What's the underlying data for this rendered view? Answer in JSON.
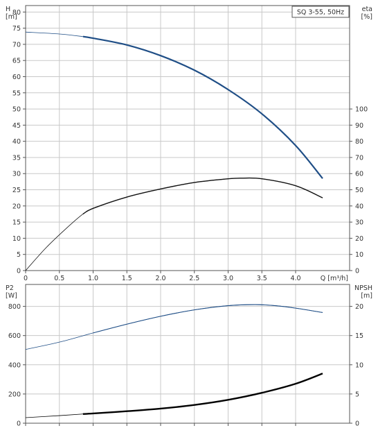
{
  "chart_data": [
    {
      "type": "line",
      "panel": "top",
      "title": "SQ 3-55, 50Hz",
      "x_axis": {
        "label": "Q [m³/h]",
        "ticks": [
          "0",
          "0.5",
          "1.0",
          "1.5",
          "2.0",
          "2.5",
          "3.0",
          "3.5",
          "4.0"
        ],
        "range": [
          0,
          4.8
        ]
      },
      "y_left": {
        "label": "H",
        "unit": "[m]",
        "ticks": [
          "0",
          "5",
          "10",
          "15",
          "20",
          "25",
          "30",
          "35",
          "40",
          "45",
          "50",
          "55",
          "60",
          "65",
          "70",
          "75",
          "80"
        ],
        "range": [
          0,
          82
        ]
      },
      "y_right": {
        "label": "eta",
        "unit": "[%]",
        "ticks": [
          "0",
          "10",
          "20",
          "30",
          "40",
          "50",
          "60",
          "70",
          "80",
          "90",
          "100"
        ],
        "range": [
          0,
          164
        ]
      },
      "grid": true,
      "series": [
        {
          "axis": "left",
          "color": "#1f4e86",
          "x": [
            0,
            0.5,
            0.85,
            1.0,
            1.5,
            2.0,
            2.5,
            3.0,
            3.5,
            4.0,
            4.4
          ],
          "y": [
            73.8,
            73.2,
            72.4,
            71.9,
            69.8,
            66.5,
            62.0,
            56.0,
            48.5,
            38.7,
            28.5
          ],
          "solid_from_x": 0.85
        },
        {
          "axis": "right",
          "color": "#111111",
          "x": [
            0,
            0.3,
            0.6,
            0.85,
            1.0,
            1.5,
            2.0,
            2.5,
            3.0,
            3.2,
            3.5,
            4.0,
            4.4
          ],
          "y": [
            0,
            14,
            26,
            35,
            38.5,
            45.5,
            50.5,
            54.5,
            56.8,
            57.2,
            56.8,
            52.5,
            45.0
          ],
          "solid_from_x": 0.85
        }
      ]
    },
    {
      "type": "line",
      "panel": "bottom",
      "x_axis": {
        "range": [
          0,
          4.8
        ]
      },
      "y_left": {
        "label": "P2",
        "unit": "[W]",
        "ticks": [
          "0",
          "200",
          "400",
          "600",
          "800"
        ],
        "range": [
          0,
          950
        ]
      },
      "y_right": {
        "label": "NPSH",
        "unit": "[m]",
        "ticks": [
          "0",
          "5",
          "10",
          "15",
          "20"
        ],
        "range": [
          0,
          23.75
        ]
      },
      "grid": true,
      "series": [
        {
          "axis": "left",
          "color": "#1f4e86",
          "x": [
            0,
            0.5,
            1.0,
            1.5,
            2.0,
            2.5,
            3.0,
            3.4,
            3.7,
            4.0,
            4.4
          ],
          "y": [
            505,
            555,
            618,
            678,
            732,
            776,
            805,
            812,
            805,
            788,
            758
          ],
          "solid_from_x": 0.85
        },
        {
          "axis": "left",
          "color": "#000000",
          "x": [
            0,
            0.5,
            0.85,
            1.0,
            1.5,
            2.0,
            2.5,
            3.0,
            3.5,
            4.0,
            4.4
          ],
          "y": [
            38,
            52,
            63,
            67,
            82,
            100,
            125,
            160,
            208,
            270,
            340
          ],
          "solid_from_x": 0.85
        }
      ]
    }
  ]
}
